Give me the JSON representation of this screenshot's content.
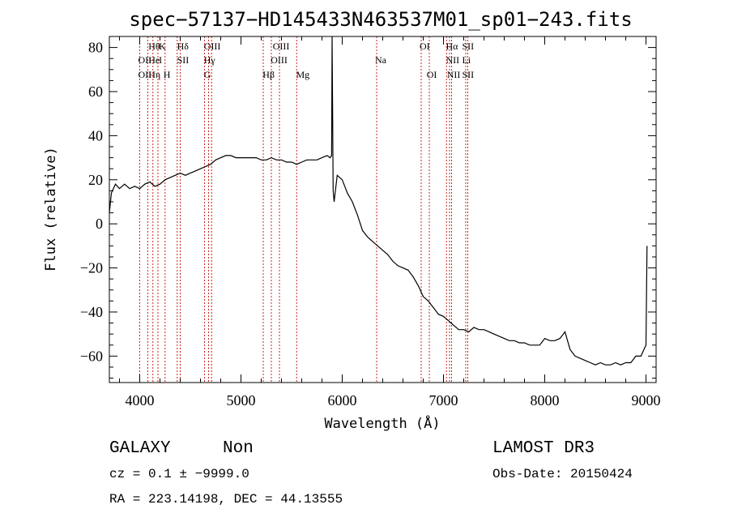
{
  "chart_data": {
    "type": "line",
    "title": "spec−57137−HD145433N463537M01_sp01−243.fits",
    "xlabel": "Wavelength (Å)",
    "ylabel": "Flux (relative)",
    "xlim": [
      3700,
      9100
    ],
    "ylim": [
      -72,
      85
    ],
    "xticks": [
      4000,
      5000,
      6000,
      7000,
      8000,
      9000
    ],
    "yticks": [
      -60,
      -40,
      -20,
      0,
      20,
      40,
      60,
      80
    ],
    "xtick_labels": [
      "4000",
      "5000",
      "6000",
      "7000",
      "8000",
      "9000"
    ],
    "ytick_labels": [
      "−60",
      "−40",
      "−20",
      "0",
      "20",
      "40",
      "60",
      "80"
    ],
    "series": [
      {
        "x": [
          3700,
          3720,
          3760,
          3800,
          3850,
          3900,
          3950,
          4000,
          4050,
          4100,
          4150,
          4200,
          4250,
          4300,
          4350,
          4400,
          4450,
          4500,
          4550,
          4600,
          4650,
          4700,
          4750,
          4800,
          4850,
          4900,
          4950,
          5000,
          5050,
          5100,
          5150,
          5200,
          5250,
          5300,
          5350,
          5400,
          5450,
          5500,
          5550,
          5600,
          5650,
          5700,
          5750,
          5800,
          5850,
          5880,
          5895,
          5900,
          5910,
          5920,
          5950,
          6000,
          6050,
          6100,
          6150,
          6200,
          6250,
          6300,
          6350,
          6400,
          6450,
          6500,
          6550,
          6600,
          6650,
          6700,
          6750,
          6800,
          6850,
          6900,
          6950,
          7000,
          7050,
          7100,
          7150,
          7200,
          7250,
          7300,
          7350,
          7400,
          7450,
          7500,
          7550,
          7600,
          7650,
          7700,
          7750,
          7800,
          7850,
          7900,
          7950,
          8000,
          8050,
          8100,
          8150,
          8200,
          8250,
          8300,
          8350,
          8400,
          8450,
          8500,
          8550,
          8600,
          8650,
          8700,
          8750,
          8800,
          8850,
          8900,
          8950,
          9000,
          9010
        ],
        "y": [
          5,
          14,
          18,
          16,
          18,
          16,
          17,
          16,
          18,
          19,
          17,
          18,
          20,
          21,
          22,
          23,
          22,
          23,
          24,
          25,
          26,
          27,
          29,
          30,
          31,
          31,
          30,
          30,
          30,
          30,
          30,
          29,
          29,
          30,
          29,
          29,
          28,
          28,
          27,
          28,
          29,
          29,
          29,
          30,
          31,
          30,
          31,
          85,
          15,
          10,
          22,
          20,
          14,
          10,
          4,
          -3,
          -6,
          -8,
          -10,
          -12,
          -14,
          -17,
          -19,
          -20,
          -21,
          -24,
          -28,
          -33,
          -35,
          -38,
          -41,
          -42,
          -44,
          -46,
          -48,
          -48,
          -49,
          -47,
          -48,
          -48,
          -49,
          -50,
          -51,
          -52,
          -53,
          -53,
          -54,
          -54,
          -55,
          -55,
          -55,
          -52,
          -53,
          -53,
          -52,
          -49,
          -57,
          -60,
          -61,
          -62,
          -63,
          -64,
          -63,
          -64,
          -64,
          -63,
          -64,
          -63,
          -63,
          -60,
          -60,
          -55,
          -10
        ]
      }
    ],
    "spectral_lines": [
      {
        "x": 4000,
        "label": "OII",
        "row": 2
      },
      {
        "x": 4000,
        "label": "OII",
        "row": 3
      },
      {
        "x": 4102,
        "label": "Hθ",
        "row": 1
      },
      {
        "x": 4102,
        "label": "He",
        "row": 2
      },
      {
        "x": 4102,
        "label": "Hη",
        "row": 3
      },
      {
        "x": 4205,
        "label": "K",
        "row": 1
      },
      {
        "x": 4205,
        "label": "I",
        "row": 2
      },
      {
        "x": 4250,
        "label": "H",
        "row": 3
      },
      {
        "x": 4385,
        "label": "Hδ",
        "row": 1
      },
      {
        "x": 4385,
        "label": "SII",
        "row": 2
      },
      {
        "x": 4650,
        "label": "OIII",
        "row": 1
      },
      {
        "x": 4650,
        "label": "Hγ",
        "row": 2
      },
      {
        "x": 4650,
        "label": "G",
        "row": 3
      },
      {
        "x": 5230,
        "label": "Hβ",
        "row": 3
      },
      {
        "x": 5330,
        "label": "OIII",
        "row": 1
      },
      {
        "x": 5310,
        "label": "OIII",
        "row": 2
      },
      {
        "x": 5560,
        "label": "Mg",
        "row": 3
      },
      {
        "x": 6340,
        "label": "Na",
        "row": 2
      },
      {
        "x": 6780,
        "label": "OI",
        "row": 1
      },
      {
        "x": 6850,
        "label": "OI",
        "row": 3
      },
      {
        "x": 7040,
        "label": "Hα",
        "row": 1
      },
      {
        "x": 7040,
        "label": "NII",
        "row": 2
      },
      {
        "x": 7050,
        "label": "NII",
        "row": 3
      },
      {
        "x": 7200,
        "label": "SII",
        "row": 1
      },
      {
        "x": 7200,
        "label": "Li",
        "row": 2
      },
      {
        "x": 7200,
        "label": "SII",
        "row": 3
      }
    ],
    "line_positions": [
      4000,
      4080,
      4130,
      4180,
      4250,
      4370,
      4400,
      4640,
      4680,
      4710,
      5220,
      5300,
      5380,
      5550,
      6340,
      6780,
      6860,
      7030,
      7060,
      7080,
      7220,
      7240
    ],
    "grid": false
  },
  "colors": {
    "spectrum": "#000000",
    "marker_lines": "#c8261e",
    "frame": "#000000",
    "background": "#ffffff"
  },
  "info": {
    "class_label": "GALAXY",
    "subclass_label": "Non",
    "survey_label": "LAMOST DR3",
    "cz_text": "cz = 0.1 ± −9999.0",
    "obs_date_text": "Obs-Date: 20150424",
    "coords_text": "RA = 223.14198, DEC =  44.13555"
  }
}
